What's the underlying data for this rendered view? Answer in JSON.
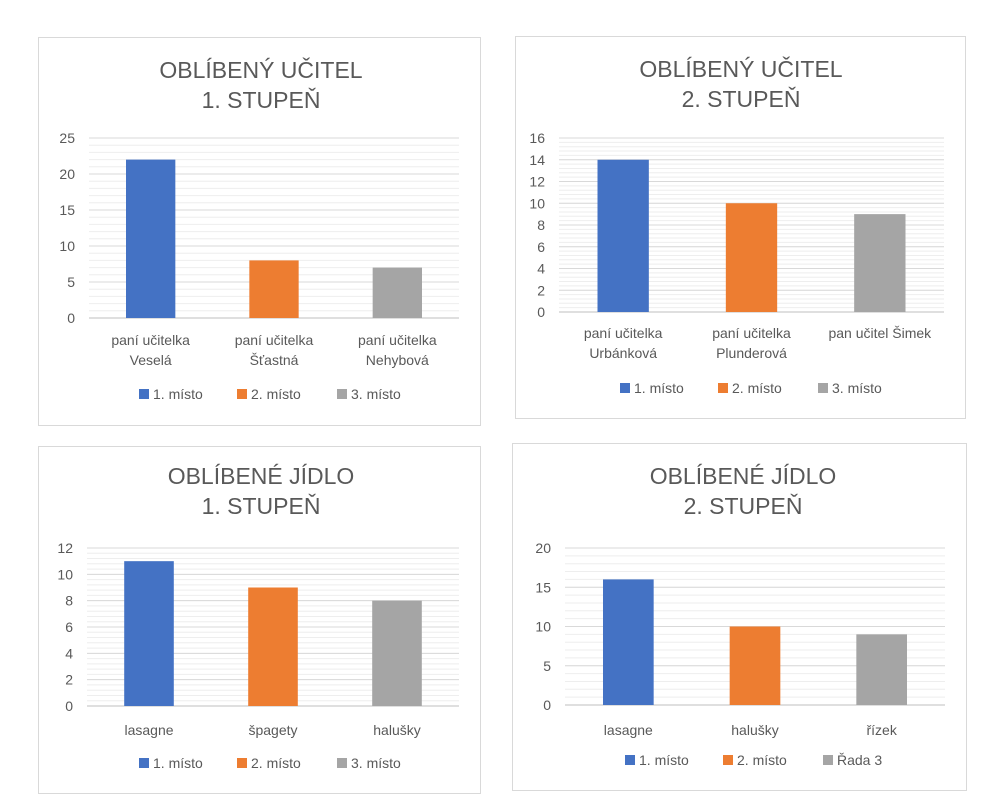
{
  "colors": {
    "series1": "#4472c4",
    "series2": "#ed7d31",
    "series3": "#a5a5a5",
    "grid": "#d9d9d9",
    "axis": "#bfbfbf",
    "text": "#595959",
    "border": "#d9d9d9"
  },
  "chart_data": [
    {
      "type": "bar",
      "title": [
        "OBLÍBENÝ UČITEL",
        "1. STUPEŇ"
      ],
      "categories": [
        [
          "paní učitelka",
          "Veselá"
        ],
        [
          "paní učitelka",
          "Šťastná"
        ],
        [
          "paní učitelka",
          "Nehybová"
        ]
      ],
      "series": [
        {
          "name": "1. místo",
          "values": [
            22,
            null,
            null
          ]
        },
        {
          "name": "2. místo",
          "values": [
            null,
            8,
            null
          ]
        },
        {
          "name": "3. místo",
          "values": [
            null,
            null,
            7
          ]
        }
      ],
      "ylim": [
        0,
        25
      ],
      "ticks": [
        0,
        5,
        10,
        15,
        20,
        25
      ],
      "minor_grid": true,
      "legend": "bottom"
    },
    {
      "type": "bar",
      "title": [
        "OBLÍBENÝ UČITEL",
        "2. STUPEŇ"
      ],
      "categories": [
        [
          "paní učitelka",
          "Urbánková"
        ],
        [
          "paní učitelka",
          "Plunderová"
        ],
        [
          "pan učitel Šimek"
        ]
      ],
      "series": [
        {
          "name": "1. místo",
          "values": [
            14,
            null,
            null
          ]
        },
        {
          "name": "2. místo",
          "values": [
            null,
            10,
            null
          ]
        },
        {
          "name": "3. místo",
          "values": [
            null,
            null,
            9
          ]
        }
      ],
      "ylim": [
        0,
        16
      ],
      "ticks": [
        0,
        2,
        4,
        6,
        8,
        10,
        12,
        14,
        16
      ],
      "minor_grid": true,
      "legend": "bottom"
    },
    {
      "type": "bar",
      "title": [
        "OBLÍBENÉ JÍDLO",
        "1. STUPEŇ"
      ],
      "categories": [
        [
          "lasagne"
        ],
        [
          "špagety"
        ],
        [
          "halušky"
        ]
      ],
      "series": [
        {
          "name": "1. místo",
          "values": [
            11,
            null,
            null
          ]
        },
        {
          "name": "2. místo",
          "values": [
            null,
            9,
            null
          ]
        },
        {
          "name": "3. místo",
          "values": [
            null,
            null,
            8
          ]
        }
      ],
      "ylim": [
        0,
        12
      ],
      "ticks": [
        0,
        2,
        4,
        6,
        8,
        10,
        12
      ],
      "minor_grid": true,
      "legend": "bottom"
    },
    {
      "type": "bar",
      "title": [
        "OBLÍBENÉ JÍDLO",
        "2. STUPEŇ"
      ],
      "categories": [
        [
          "lasagne"
        ],
        [
          "halušky"
        ],
        [
          "řízek"
        ]
      ],
      "series": [
        {
          "name": "1. místo",
          "values": [
            16,
            null,
            null
          ]
        },
        {
          "name": "2. místo",
          "values": [
            null,
            10,
            null
          ]
        },
        {
          "name": "Řada 3",
          "values": [
            null,
            null,
            9
          ]
        }
      ],
      "ylim": [
        0,
        20
      ],
      "ticks": [
        0,
        5,
        10,
        15,
        20
      ],
      "minor_grid": true,
      "legend": "bottom"
    }
  ]
}
